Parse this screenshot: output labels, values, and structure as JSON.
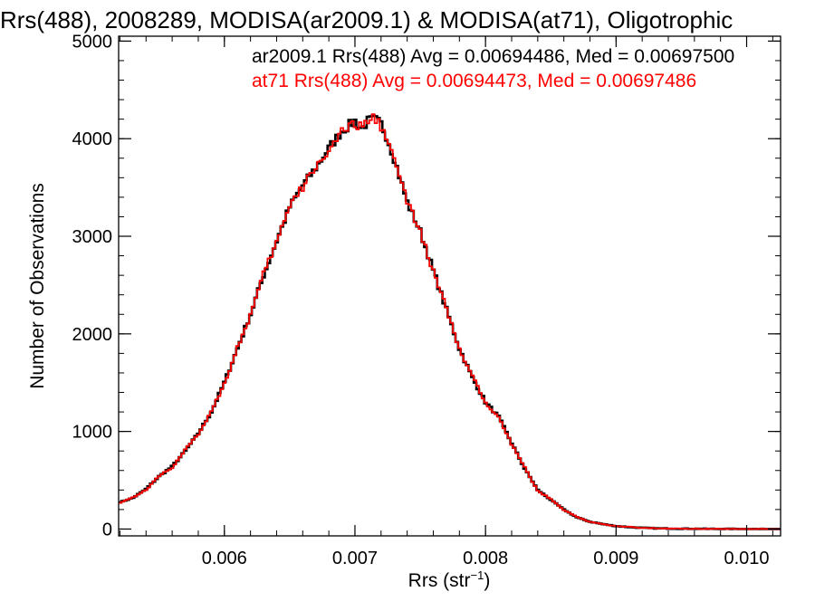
{
  "chart_data": {
    "type": "line",
    "title": "Rrs(488), 2008289, MODISA(ar2009.1) & MODISA(at71), Oligotrophic",
    "xlabel": "Rrs (str",
    "xlabel_sup": "−1",
    "xlabel_end": ")",
    "ylabel": "Number of Observations",
    "xlim": [
      0.00519,
      0.01026
    ],
    "ylim": [
      -70,
      5050
    ],
    "x_ticks": [
      {
        "value": 0.006,
        "label": "0.006"
      },
      {
        "value": 0.007,
        "label": "0.007"
      },
      {
        "value": 0.008,
        "label": "0.008"
      },
      {
        "value": 0.009,
        "label": "0.009"
      },
      {
        "value": 0.01,
        "label": "0.010"
      }
    ],
    "y_ticks": [
      {
        "value": 0,
        "label": "0"
      },
      {
        "value": 1000,
        "label": "1000"
      },
      {
        "value": 2000,
        "label": "2000"
      },
      {
        "value": 3000,
        "label": "3000"
      },
      {
        "value": 4000,
        "label": "4000"
      },
      {
        "value": 5000,
        "label": "5000"
      }
    ],
    "x_minor_step": 0.0002,
    "y_minor_step": 200,
    "step_style": "histogram",
    "annotations": [
      {
        "text": "ar2009.1 Rrs(488) Avg = 0.00694486, Med = 0.00697500",
        "color": "#000000"
      },
      {
        "text": "at71 Rrs(488) Avg = 0.00694473, Med = 0.00697486",
        "color": "#ff0000"
      }
    ],
    "series": [
      {
        "color": "#000000",
        "x": [
          0.00519,
          0.0053,
          0.0054,
          0.0055,
          0.0056,
          0.0057,
          0.0058,
          0.0059,
          0.006,
          0.0061,
          0.0062,
          0.0063,
          0.0064,
          0.0065,
          0.0066,
          0.0067,
          0.0068,
          0.0069,
          0.007,
          0.00705,
          0.0071,
          0.00715,
          0.0072,
          0.00725,
          0.0073,
          0.0074,
          0.0075,
          0.0076,
          0.0077,
          0.0078,
          0.0079,
          0.008,
          0.0081,
          0.0082,
          0.0083,
          0.0084,
          0.0085,
          0.0086,
          0.0087,
          0.0088,
          0.0089,
          0.009,
          0.0091,
          0.0092,
          0.0093,
          0.0094,
          0.0095,
          0.0096,
          0.0097,
          0.0098,
          0.0099,
          0.01,
          0.01026
        ],
        "y": [
          270,
          320,
          410,
          540,
          640,
          800,
          980,
          1200,
          1500,
          1850,
          2200,
          2600,
          2950,
          3300,
          3520,
          3700,
          3900,
          4080,
          4180,
          4100,
          4180,
          4200,
          4150,
          4000,
          3800,
          3350,
          3050,
          2650,
          2250,
          1850,
          1550,
          1300,
          1150,
          880,
          620,
          400,
          300,
          200,
          120,
          75,
          50,
          30,
          20,
          12,
          8,
          5,
          4,
          3,
          2,
          1,
          1,
          0,
          0
        ]
      },
      {
        "color": "#ff0000",
        "x": [
          0.00519,
          0.0053,
          0.0054,
          0.0055,
          0.0056,
          0.0057,
          0.0058,
          0.0059,
          0.006,
          0.0061,
          0.0062,
          0.0063,
          0.0064,
          0.0065,
          0.0066,
          0.0067,
          0.0068,
          0.0069,
          0.007,
          0.00705,
          0.0071,
          0.00715,
          0.0072,
          0.00725,
          0.0073,
          0.0074,
          0.0075,
          0.0076,
          0.0077,
          0.0078,
          0.0079,
          0.008,
          0.0081,
          0.0082,
          0.0083,
          0.0084,
          0.0085,
          0.0086,
          0.0087,
          0.0088,
          0.0089,
          0.009,
          0.0091,
          0.0092,
          0.0093,
          0.0094,
          0.0095,
          0.0096,
          0.0097,
          0.0098,
          0.0099,
          0.01,
          0.01026
        ],
        "y": [
          265,
          325,
          400,
          545,
          630,
          810,
          970,
          1210,
          1490,
          1860,
          2190,
          2610,
          2940,
          3310,
          3500,
          3720,
          3880,
          4060,
          4150,
          4120,
          4170,
          4220,
          4130,
          4020,
          3780,
          3360,
          3040,
          2640,
          2260,
          1840,
          1560,
          1290,
          1160,
          870,
          630,
          390,
          310,
          195,
          125,
          72,
          52,
          28,
          22,
          11,
          9,
          5,
          4,
          3,
          2,
          1,
          1,
          0,
          0
        ]
      }
    ]
  }
}
